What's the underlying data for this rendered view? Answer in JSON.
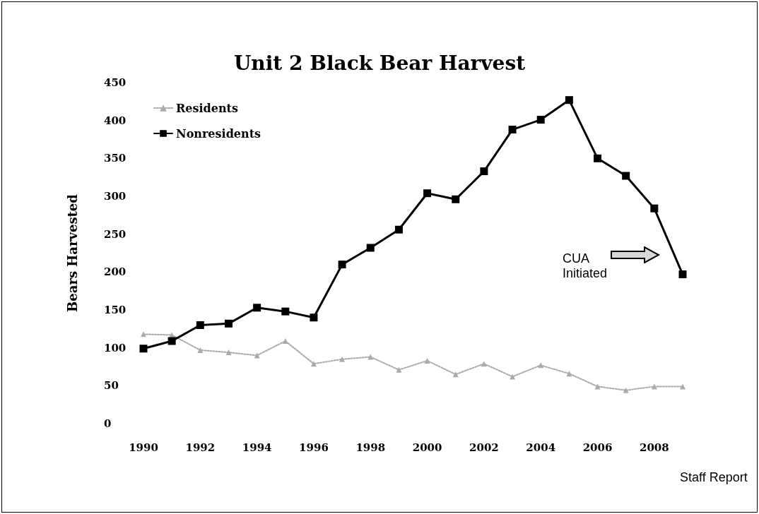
{
  "chart_data": {
    "type": "line",
    "title": "Unit 2 Black Bear Harvest",
    "ylabel": "Bears Harvested",
    "categories": [
      "1990",
      null,
      "1992",
      null,
      "1994",
      null,
      "1996",
      null,
      "1998",
      null,
      "2000",
      null,
      "2002",
      null,
      "2004",
      null,
      "2006",
      null,
      "2008",
      null
    ],
    "series": [
      {
        "name": "Residents",
        "color": "#aaaaaa",
        "marker": "triangle",
        "line_style": "dotted",
        "values": [
          118,
          117,
          97,
          94,
          90,
          109,
          79,
          85,
          88,
          71,
          83,
          65,
          79,
          62,
          77,
          66,
          49,
          44,
          49,
          49
        ]
      },
      {
        "name": "Nonresidents",
        "color": "#000000",
        "marker": "square",
        "line_style": "solid",
        "values": [
          99,
          109,
          130,
          132,
          153,
          148,
          140,
          210,
          232,
          256,
          304,
          296,
          333,
          388,
          401,
          427,
          350,
          327,
          284,
          197
        ]
      }
    ],
    "ylim": [
      0,
      450
    ],
    "yticks": [
      0,
      50,
      100,
      150,
      200,
      250,
      300,
      350,
      400,
      450
    ],
    "grid": false,
    "legend": "top left",
    "annotations": [
      "CUA Initiated",
      "Staff Report"
    ]
  }
}
